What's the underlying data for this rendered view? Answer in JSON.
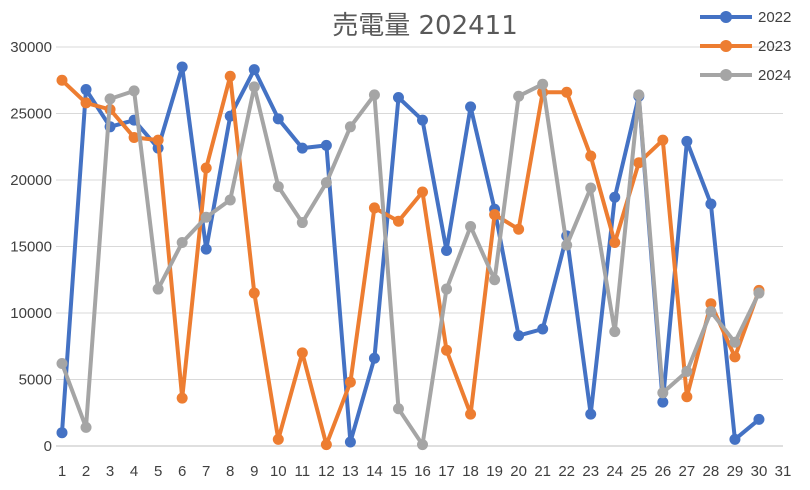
{
  "chart_data": {
    "type": "line",
    "title": "売電量 202411",
    "xlabel": "",
    "ylabel": "",
    "x": [
      "1",
      "2",
      "3",
      "4",
      "5",
      "6",
      "7",
      "8",
      "9",
      "10",
      "11",
      "12",
      "13",
      "14",
      "15",
      "16",
      "17",
      "18",
      "19",
      "20",
      "21",
      "22",
      "23",
      "24",
      "25",
      "26",
      "27",
      "28",
      "29",
      "30",
      "31"
    ],
    "ylim": [
      0,
      30000
    ],
    "yticks": [
      0,
      5000,
      10000,
      15000,
      20000,
      25000,
      30000
    ],
    "grid": true,
    "legend_position": "top-right",
    "series": [
      {
        "name": "2022",
        "color": "#4472C4",
        "values": [
          1000,
          26800,
          24000,
          24500,
          22400,
          28500,
          14800,
          24800,
          28300,
          24600,
          22400,
          22600,
          300,
          6600,
          26200,
          24500,
          14700,
          25500,
          17800,
          8300,
          8800,
          15800,
          2400,
          18700,
          26300,
          3300,
          22900,
          18200,
          500,
          2000,
          null
        ]
      },
      {
        "name": "2023",
        "color": "#ED7D31",
        "values": [
          27500,
          25800,
          25300,
          23200,
          23000,
          3600,
          20900,
          27800,
          11500,
          500,
          7000,
          100,
          4800,
          17900,
          16900,
          19100,
          7200,
          2400,
          17400,
          16300,
          26600,
          26600,
          21800,
          15300,
          21300,
          23000,
          3700,
          10700,
          6700,
          11700,
          null
        ]
      },
      {
        "name": "2024",
        "color": "#A5A5A5",
        "values": [
          6200,
          1400,
          26100,
          26700,
          11800,
          15300,
          17200,
          18500,
          27000,
          19500,
          16800,
          19800,
          24000,
          26400,
          2800,
          100,
          11800,
          16500,
          12500,
          26300,
          27200,
          15100,
          19400,
          8600,
          26400,
          4000,
          5600,
          10100,
          7800,
          11500,
          null
        ]
      }
    ]
  }
}
